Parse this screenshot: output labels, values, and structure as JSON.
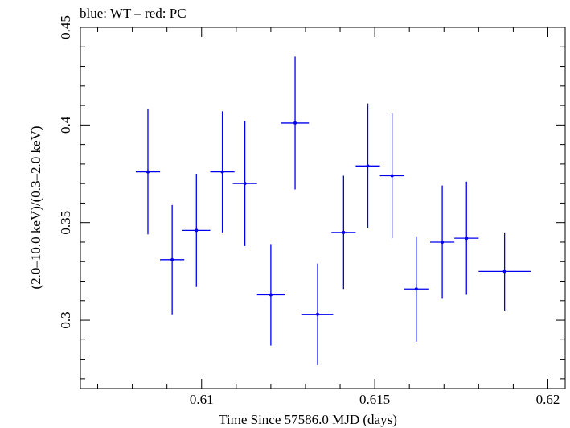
{
  "chart_data": {
    "type": "scatter",
    "title": "blue: WT – red: PC",
    "xlabel": "Time Since 57586.0 MJD (days)",
    "ylabel": "(2.0–10.0 keV)/(0.3–2.0 keV)",
    "xlim": [
      0.6065,
      0.6205
    ],
    "ylim": [
      0.265,
      0.45
    ],
    "x_ticks": [
      0.61,
      0.615,
      0.62
    ],
    "x_tick_labels": [
      "0.61",
      "0.615",
      "0.62"
    ],
    "y_ticks": [
      0.3,
      0.35,
      0.4,
      0.45
    ],
    "y_tick_labels": [
      "0.3",
      "0.35",
      "0.4",
      "0.45"
    ],
    "grid": false,
    "series": [
      {
        "color": "#0000ee",
        "points": [
          {
            "x": 0.60845,
            "xerr": 0.00035,
            "y": 0.376,
            "yerr": 0.032
          },
          {
            "x": 0.60915,
            "xerr": 0.00035,
            "y": 0.331,
            "yerr": 0.028
          },
          {
            "x": 0.60985,
            "xerr": 0.0004,
            "y": 0.346,
            "yerr": 0.029
          },
          {
            "x": 0.6106,
            "xerr": 0.00035,
            "y": 0.376,
            "yerr": 0.031
          },
          {
            "x": 0.61125,
            "xerr": 0.00035,
            "y": 0.37,
            "yerr": 0.032
          },
          {
            "x": 0.612,
            "xerr": 0.0004,
            "y": 0.313,
            "yerr": 0.026
          },
          {
            "x": 0.6127,
            "xerr": 0.0004,
            "y": 0.401,
            "yerr": 0.034
          },
          {
            "x": 0.61335,
            "xerr": 0.00045,
            "y": 0.303,
            "yerr": 0.026
          },
          {
            "x": 0.6141,
            "xerr": 0.00035,
            "y": 0.345,
            "yerr": 0.029
          },
          {
            "x": 0.6148,
            "xerr": 0.00035,
            "y": 0.379,
            "yerr": 0.032
          },
          {
            "x": 0.6155,
            "xerr": 0.00035,
            "y": 0.374,
            "yerr": 0.032
          },
          {
            "x": 0.6162,
            "xerr": 0.00035,
            "y": 0.316,
            "yerr": 0.027
          },
          {
            "x": 0.61695,
            "xerr": 0.00035,
            "y": 0.34,
            "yerr": 0.029
          },
          {
            "x": 0.61765,
            "xerr": 0.00035,
            "y": 0.342,
            "yerr": 0.029
          },
          {
            "x": 0.61875,
            "xerr": 0.00075,
            "y": 0.325,
            "yerr": 0.02
          }
        ]
      }
    ]
  }
}
